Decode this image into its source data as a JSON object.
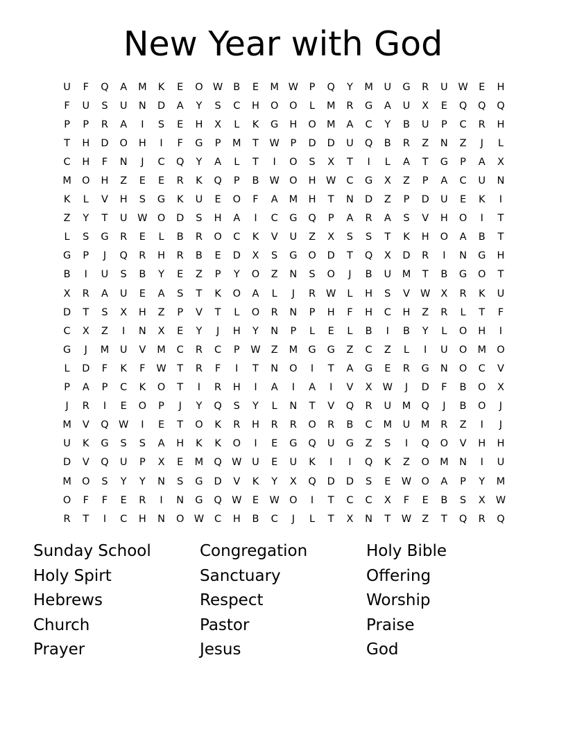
{
  "title": "New Year with God",
  "grid": [
    "UFQAMKEOWBEMWPQYMUGRUWEH",
    "FUSUNDAYSCHOOLMRGAUXEQQQ",
    "PPRAISEHXLKGHOMACYBUPCRH",
    "THDOHIFGPMTWPDDUQBRZNZJL",
    "CHFNJCQYALTIOSXTILATGPAX",
    "MOHZEERKQPBWOHWCGXZPACUN",
    "KLVHSGKUEOFAMHTNDZPDUEKI",
    "ZYTUWODSHAICGQPARASVHOIT",
    "LSGRELBROCKVUZXSSTKHOABT",
    "GPJQRHRBEDXSGODTQXDRINGH",
    "BIUSBYEZPYOZNSOJBUMTBGOT",
    "XRAUEASTKOALJRWLHSVWXRKU",
    "DTSXHZPVTLORNPHFHCHZRLTF",
    "CXZINXEYJHYNPLELBIBYLOHI",
    "GJMUVMCRCPWZMGGZCZLIUOMO",
    "LDFKFWTRFITNOITAGERGNOCV",
    "PAPCKOTIRHIAIAIVXWJDFBOX",
    "JRIEOPJYQSYLNTVQRUMQJBOJ",
    "MVQWIETOKRHRRORBCMUMRZIJ",
    "UKGSSAHKKOIEGQUGZSIQOVHH",
    "DVQUPXEMQWUEUKIIQKZOMNIU",
    "MOSYYNSGDVKYXQDDSEWOAPYM",
    "OFFERINGQWEWOITCCXFEBSXW",
    "RTICHNOWCHBCJLTXNTWZTQRQ"
  ],
  "words": [
    "Sunday School",
    "Congregation",
    "Holy Bible",
    "Holy Spirt",
    "Sanctuary",
    "Offering",
    "Hebrews",
    "Respect",
    "Worship",
    "Church",
    "Pastor",
    "Praise",
    "Prayer",
    "Jesus",
    "God"
  ]
}
